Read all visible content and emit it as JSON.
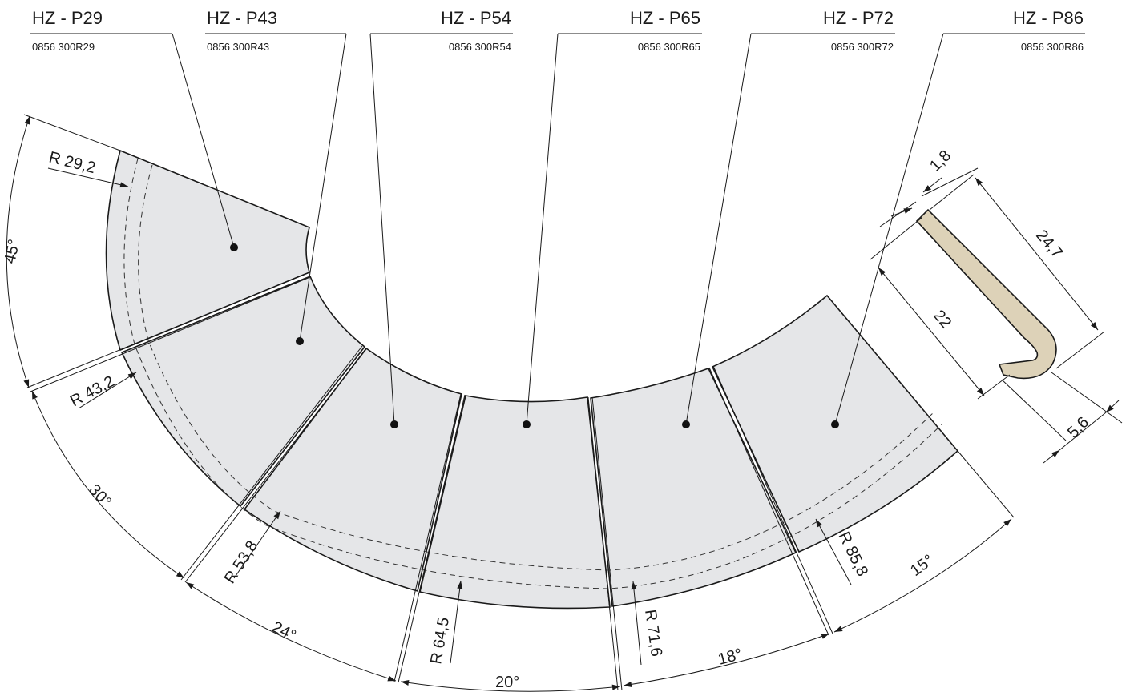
{
  "parts": [
    {
      "name": "HZ - P29",
      "code": "0856 300R29"
    },
    {
      "name": "HZ - P43",
      "code": "0856 300R43"
    },
    {
      "name": "HZ - P54",
      "code": "0856 300R54"
    },
    {
      "name": "HZ - P65",
      "code": "0856 300R65"
    },
    {
      "name": "HZ - P72",
      "code": "0856 300R72"
    },
    {
      "name": "HZ - P86",
      "code": "0856 300R86"
    }
  ],
  "angles": [
    "45°",
    "30°",
    "24°",
    "20°",
    "18°",
    "15°"
  ],
  "radii": [
    "R 29,2",
    "R 43,2",
    "R 53,8",
    "R 64,5",
    "R 71,6",
    "R 85,8"
  ],
  "profile_dims": [
    "1,8",
    "24,7",
    "22",
    "5,6"
  ],
  "colors": {
    "segment_fill": "#e5e6e8",
    "profile_fill": "#ddd2b8",
    "line": "#1a1a1a"
  }
}
